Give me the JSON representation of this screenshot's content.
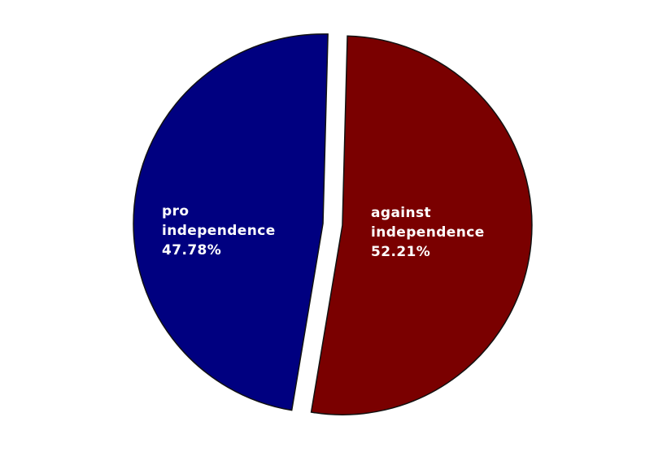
{
  "chart_data": {
    "type": "pie",
    "title": "",
    "slices": [
      {
        "label_lines": [
          "against",
          "independence"
        ],
        "value_label": "52.21%",
        "value": 52.21,
        "color": "#7a0000",
        "exploded": true
      },
      {
        "label_lines": [
          "pro",
          "independence"
        ],
        "value_label": "47.78%",
        "value": 47.78,
        "color": "#000080",
        "exploded": true
      }
    ],
    "start": "top",
    "direction": "clockwise",
    "legend": "none"
  }
}
